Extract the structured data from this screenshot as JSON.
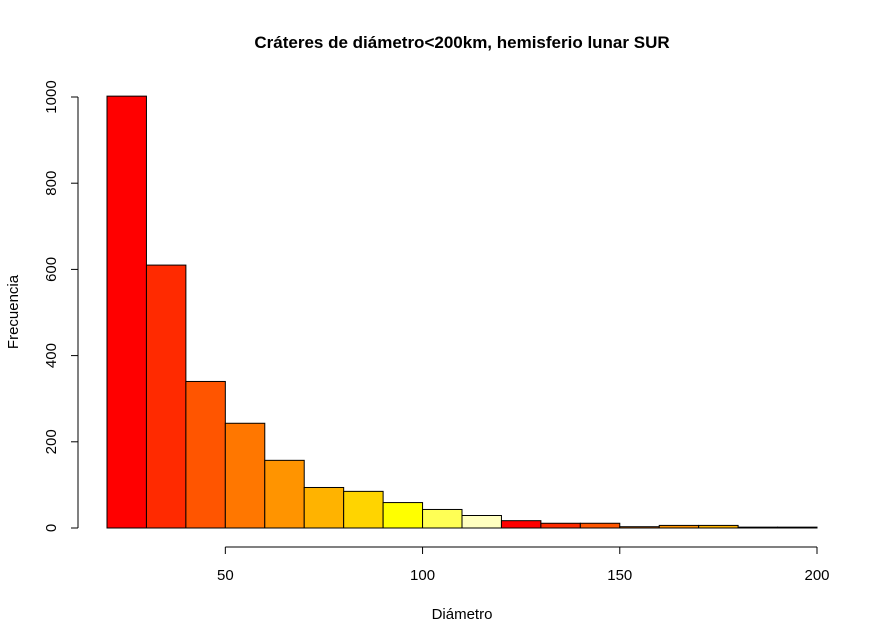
{
  "chart_data": {
    "type": "bar",
    "title": "Cráteres de diámetro<200km, hemisferio lunar SUR",
    "xlabel": "Diámetro",
    "ylabel": "Frecuencia",
    "xlim": [
      20,
      200
    ],
    "ylim": [
      0,
      1000
    ],
    "x_ticks": [
      50,
      100,
      150,
      200
    ],
    "y_ticks": [
      0,
      200,
      400,
      600,
      800,
      1000
    ],
    "bins": [
      {
        "start": 20,
        "end": 30,
        "value": 1002,
        "color": "#FF0000"
      },
      {
        "start": 30,
        "end": 40,
        "value": 610,
        "color": "#FF2A00"
      },
      {
        "start": 40,
        "end": 50,
        "value": 340,
        "color": "#FF5500"
      },
      {
        "start": 50,
        "end": 60,
        "value": 243,
        "color": "#FF7700"
      },
      {
        "start": 60,
        "end": 70,
        "value": 157,
        "color": "#FF9400"
      },
      {
        "start": 70,
        "end": 80,
        "value": 94,
        "color": "#FFB300"
      },
      {
        "start": 80,
        "end": 90,
        "value": 85,
        "color": "#FFD400"
      },
      {
        "start": 90,
        "end": 100,
        "value": 59,
        "color": "#FFFF00"
      },
      {
        "start": 100,
        "end": 110,
        "value": 43,
        "color": "#FFFF55"
      },
      {
        "start": 110,
        "end": 120,
        "value": 29,
        "color": "#FFFFC0"
      },
      {
        "start": 120,
        "end": 130,
        "value": 17,
        "color": "#FF0000"
      },
      {
        "start": 130,
        "end": 140,
        "value": 11,
        "color": "#FF2A00"
      },
      {
        "start": 140,
        "end": 150,
        "value": 11,
        "color": "#FF5500"
      },
      {
        "start": 150,
        "end": 160,
        "value": 3,
        "color": "#FF7700"
      },
      {
        "start": 160,
        "end": 170,
        "value": 6,
        "color": "#FF9400"
      },
      {
        "start": 170,
        "end": 180,
        "value": 6,
        "color": "#FFB300"
      },
      {
        "start": 180,
        "end": 190,
        "value": 2,
        "color": "#FFD400"
      },
      {
        "start": 190,
        "end": 200,
        "value": 2,
        "color": "#FFFF00"
      }
    ]
  }
}
